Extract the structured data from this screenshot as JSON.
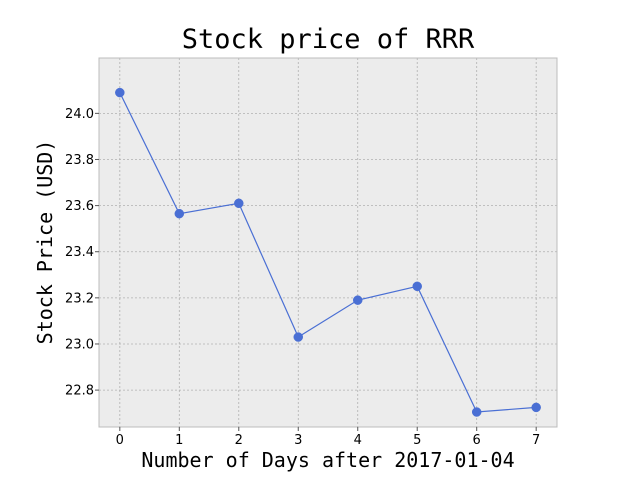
{
  "chart_data": {
    "type": "line",
    "title": "Stock price of RRR",
    "xlabel": "Number of Days after 2017-01-04",
    "ylabel": "Stock Price (USD)",
    "x": [
      0,
      1,
      2,
      3,
      4,
      5,
      6,
      7
    ],
    "series": [
      {
        "values": [
          24.09,
          23.565,
          23.61,
          23.03,
          23.19,
          23.25,
          22.705,
          22.725
        ]
      }
    ],
    "xlim": [
      -0.35,
      7.35
    ],
    "ylim": [
      22.64,
      24.24
    ],
    "x_ticks": [
      0,
      1,
      2,
      3,
      4,
      5,
      6,
      7
    ],
    "y_ticks": [
      22.8,
      23.0,
      23.2,
      23.4,
      23.6,
      23.8,
      24.0
    ],
    "x_tick_labels": [
      "0",
      "1",
      "2",
      "3",
      "4",
      "5",
      "6",
      "7"
    ],
    "y_tick_labels": [
      "22.8",
      "23.0",
      "23.2",
      "23.4",
      "23.6",
      "23.8",
      "24.0"
    ],
    "grid": true,
    "colors": {
      "line": "#4a6fd4",
      "marker": "#4a6fd4",
      "plot_background": "#ececec",
      "grid": "#b0b0b0",
      "axes_edge": "#bcbcbc"
    }
  }
}
